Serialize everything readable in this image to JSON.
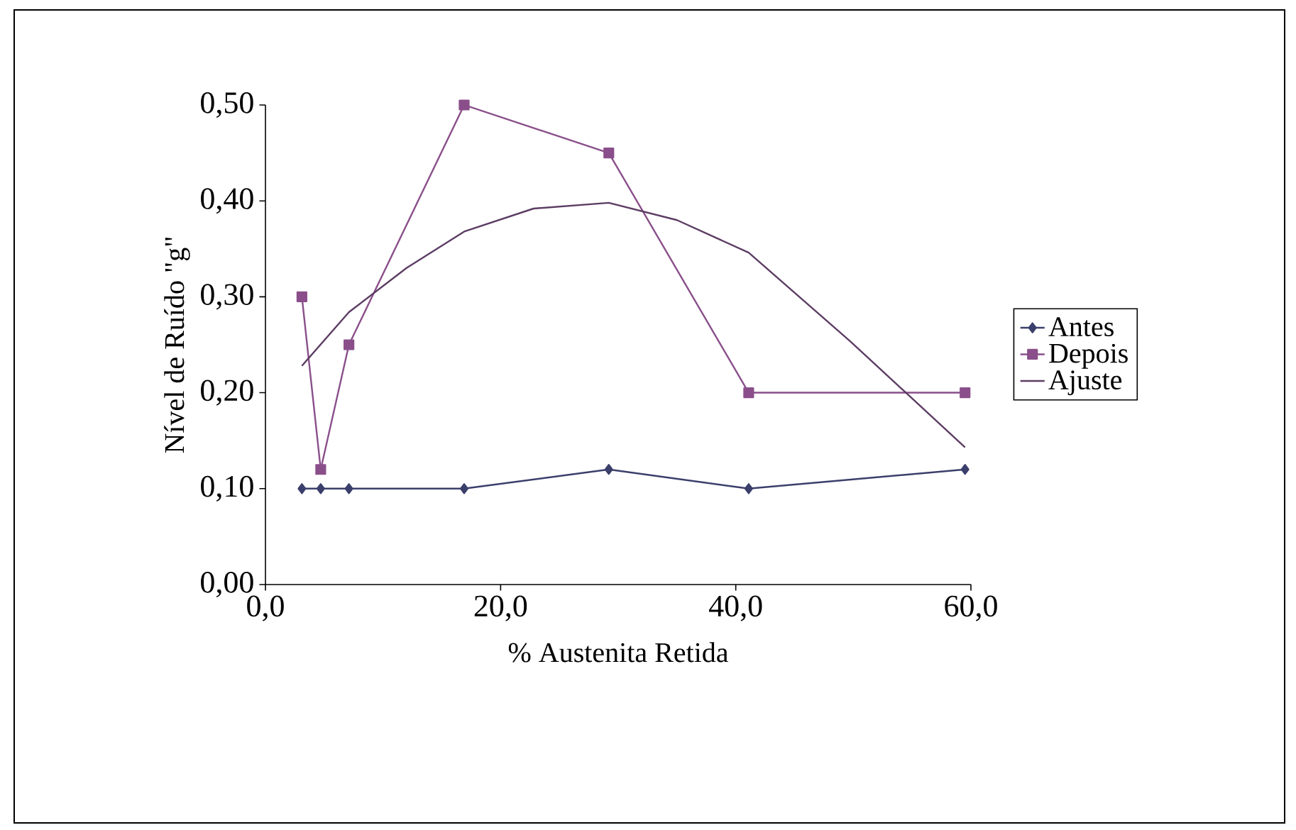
{
  "chart_data": {
    "type": "line",
    "xlabel": "% Austenita Retida",
    "ylabel": "Nível de Ruído \"g\"",
    "xlim": [
      0,
      60
    ],
    "ylim": [
      0,
      0.5
    ],
    "xticks": [
      {
        "value": 0,
        "label": "0,0"
      },
      {
        "value": 20,
        "label": "20,0"
      },
      {
        "value": 40,
        "label": "40,0"
      },
      {
        "value": 60,
        "label": "60,0"
      }
    ],
    "yticks": [
      {
        "value": 0,
        "label": "0,00"
      },
      {
        "value": 0.1,
        "label": "0,10"
      },
      {
        "value": 0.2,
        "label": "0,20"
      },
      {
        "value": 0.3,
        "label": "0,30"
      },
      {
        "value": 0.4,
        "label": "0,40"
      },
      {
        "value": 0.5,
        "label": "0,50"
      }
    ],
    "legend": "right",
    "line_style": "solid",
    "series": [
      {
        "name": "Antes",
        "color": "#3b3f6b",
        "marker": "diamond",
        "x": [
          3.1,
          4.7,
          7.1,
          16.9,
          29.2,
          41.1,
          59.5
        ],
        "values": [
          0.1,
          0.1,
          0.1,
          0.1,
          0.12,
          0.1,
          0.12
        ]
      },
      {
        "name": "Depois",
        "color": "#8a4f8a",
        "marker": "square",
        "x": [
          3.1,
          4.7,
          7.1,
          16.9,
          29.2,
          41.1,
          59.5
        ],
        "values": [
          0.3,
          0.12,
          0.25,
          0.5,
          0.45,
          0.2,
          0.2
        ]
      },
      {
        "name": "Ajuste",
        "color": "#5c3d63",
        "marker": "none",
        "x": [
          3.1,
          7.1,
          12,
          16.9,
          22.8,
          29.2,
          35,
          41.1,
          49.7,
          59.5
        ],
        "values": [
          0.228,
          0.284,
          0.33,
          0.368,
          0.392,
          0.398,
          0.38,
          0.346,
          0.254,
          0.143
        ]
      }
    ]
  }
}
